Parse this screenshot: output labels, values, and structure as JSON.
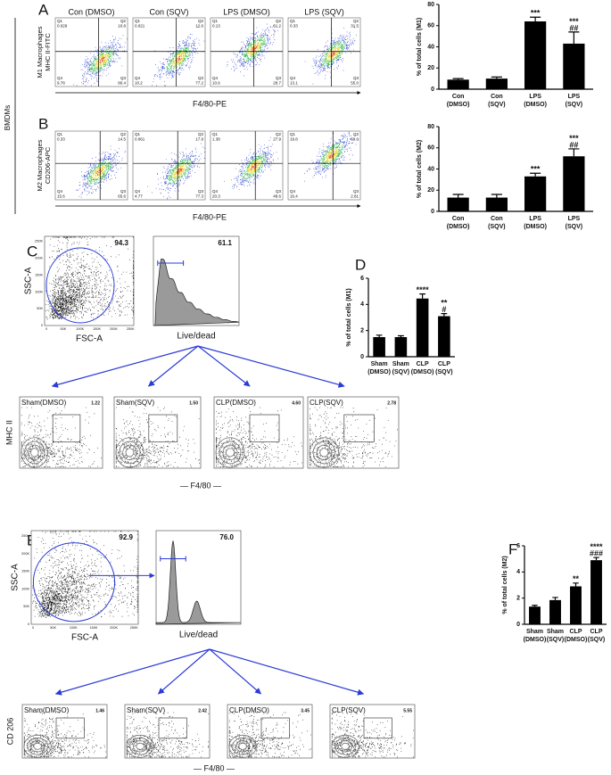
{
  "panel_letters": [
    "A",
    "B",
    "C",
    "D",
    "E",
    "F"
  ],
  "bmdm": {
    "row_label": "BMDMs",
    "quadrant_names": [
      "Q1",
      "Q2",
      "Q4",
      "Q3"
    ],
    "rows": [
      {
        "y_label": [
          "MHC II-FITC",
          "M1 Macrophages"
        ],
        "x_label": "F4/80-PE",
        "titles": [
          "Con (DMSO)",
          "Con (SQV)",
          "LPS (DMSO)",
          "LPS (SQV)"
        ],
        "plots": [
          [
            "0.029",
            "10.8",
            "9.78",
            "80.4"
          ],
          [
            "0.021",
            "12.6",
            "10.2",
            "77.2"
          ],
          [
            "0.13",
            "61.2",
            "10.6",
            "28.7"
          ],
          [
            "0.33",
            "31.5",
            "13.1",
            "55.0"
          ]
        ]
      },
      {
        "y_label": [
          "CD206-APC",
          "M2 Macrophages"
        ],
        "x_label": "F4/80-PE",
        "plots": [
          [
            "0.33",
            "14.5",
            "15.6",
            "65.6"
          ],
          [
            "0.061",
            "17.9",
            "4.77",
            "77.3"
          ],
          [
            "1.38",
            "27.9",
            "20.3",
            "48.6"
          ],
          [
            "19.8",
            "69.0",
            "16.4",
            "2.81"
          ]
        ]
      }
    ]
  },
  "sepsis": [
    {
      "scatter": {
        "y_label": "SSC-A",
        "x_label": "FSC-A",
        "gate": "94.3",
        "yticks": [
          "0",
          "50K",
          "100K",
          "150K",
          "200K",
          "250K"
        ],
        "xticks": [
          "0",
          "50K",
          "100K",
          "150K",
          "200K",
          "250K"
        ]
      },
      "histogram": {
        "x_label": "Live/dead",
        "gate": "61.1"
      },
      "samples": [
        {
          "name": "Sham(DMSO)",
          "value": "1.22"
        },
        {
          "name": "Sham(SQV)",
          "value": "1.50"
        },
        {
          "name": "CLP(DMSO)",
          "value": "4.60"
        },
        {
          "name": "CLP(SQV)",
          "value": "2.78"
        }
      ],
      "y_label": "MHC II",
      "x_label": "— F4/80 —"
    },
    {
      "scatter": {
        "y_label": "SSC-A",
        "x_label": "FSC-A",
        "gate": "92.9",
        "yticks": [
          "0",
          "50K",
          "100K",
          "150K",
          "200K",
          "250K"
        ],
        "xticks": [
          "0",
          "50K",
          "100K",
          "150K",
          "200K",
          "250K"
        ]
      },
      "histogram": {
        "x_label": "Live/dead",
        "gate": "76.0"
      },
      "samples": [
        {
          "name": "Sham(DMSO)",
          "value": "1.46"
        },
        {
          "name": "Sham(SQV)",
          "value": "2.42"
        },
        {
          "name": "CLP(DMSO)",
          "value": "3.45"
        },
        {
          "name": "CLP(SQV)",
          "value": "5.55"
        }
      ],
      "y_label": "CD 206",
      "x_label": "— F4/80 —"
    }
  ],
  "chart_data": [
    {
      "type": "bar",
      "y_label": "% of total cells (M1)",
      "categories": [
        [
          "Con",
          "(DMSO)"
        ],
        [
          "Con",
          "(SQV)"
        ],
        [
          "LPS",
          "(DMSO)"
        ],
        [
          "LPS",
          "(SQV)"
        ]
      ],
      "values": [
        9,
        10,
        64,
        43
      ],
      "errors": [
        1,
        1.5,
        4,
        11
      ],
      "annotations": [
        null,
        null,
        [
          "***"
        ],
        [
          "***",
          "##"
        ]
      ],
      "color": "#000000",
      "ylim": [
        0,
        80
      ],
      "yticks": [
        0,
        20,
        40,
        60,
        80
      ]
    },
    {
      "type": "bar",
      "y_label": "% of total cells (M2)",
      "categories": [
        [
          "Con",
          "(DMSO)"
        ],
        [
          "Con",
          "(SQV)"
        ],
        [
          "LPS",
          "(DMSO)"
        ],
        [
          "LPS",
          "(SQV)"
        ]
      ],
      "values": [
        13,
        13,
        33,
        52
      ],
      "errors": [
        3,
        3,
        3,
        7
      ],
      "annotations": [
        null,
        null,
        [
          "***"
        ],
        [
          "***",
          "##"
        ]
      ],
      "color": "#000000",
      "ylim": [
        0,
        80
      ],
      "yticks": [
        0,
        20,
        40,
        60,
        80
      ]
    },
    {
      "type": "bar",
      "y_label": "% of total cells (M1)",
      "categories": [
        [
          "Sham",
          "(DMSO)"
        ],
        [
          "Sham",
          "(SQV)"
        ],
        [
          "CLP",
          "(DMSO)"
        ],
        [
          "CLP",
          "(SQV)"
        ]
      ],
      "values": [
        1.5,
        1.5,
        4.45,
        3.1
      ],
      "errors": [
        0.15,
        0.1,
        0.35,
        0.2
      ],
      "annotations": [
        null,
        null,
        [
          "****"
        ],
        [
          "**",
          "#"
        ]
      ],
      "color": "#000000",
      "ylim": [
        0,
        6
      ],
      "yticks": [
        0,
        2,
        4,
        6
      ]
    },
    {
      "type": "bar",
      "y_label": "% of total cells (M2)",
      "categories": [
        [
          "Sham",
          "(DMSO)"
        ],
        [
          "Sham",
          "(SQV)"
        ],
        [
          "CLP",
          "(DMSO)"
        ],
        [
          "CLP",
          "(SQV)"
        ]
      ],
      "values": [
        1.35,
        1.85,
        2.9,
        4.9
      ],
      "errors": [
        0.1,
        0.2,
        0.25,
        0.2
      ],
      "annotations": [
        null,
        null,
        [
          "**"
        ],
        [
          "****",
          "###"
        ]
      ],
      "color": "#000000",
      "ylim": [
        0,
        6
      ],
      "yticks": [
        0,
        2,
        4,
        6
      ]
    }
  ]
}
